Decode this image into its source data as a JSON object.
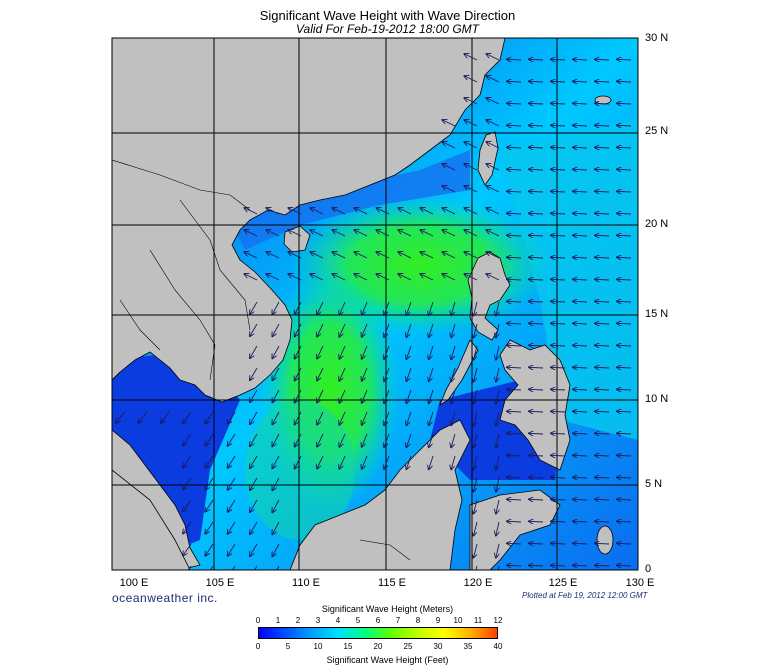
{
  "header": {
    "title": "Significant Wave Height with Wave Direction",
    "subtitle": "Valid For Feb-19-2012 18:00 GMT"
  },
  "map": {
    "lat_labels": [
      "30 N",
      "25 N",
      "20 N",
      "15 N",
      "10 N",
      "5 N",
      "0"
    ],
    "lon_labels": [
      "100 E",
      "105 E",
      "110 E",
      "115 E",
      "120 E",
      "125 E",
      "130 E"
    ],
    "colors": {
      "land": "#c0c0c0",
      "coast": "#000000",
      "grid": "#000000",
      "arrow": "#1b1b5e"
    }
  },
  "footer": {
    "brand": "oceanweather inc.",
    "plotted": "Plotted at Feb 19, 2012 12:00 GMT"
  },
  "colorbar": {
    "title_meters": "Significant Wave Height (Meters)",
    "title_feet": "Significant Wave Height (Feet)",
    "meters_ticks": [
      "0",
      "1",
      "2",
      "3",
      "4",
      "5",
      "6",
      "7",
      "8",
      "9",
      "10",
      "11",
      "12"
    ],
    "feet_ticks": [
      "0",
      "5",
      "10",
      "15",
      "20",
      "25",
      "30",
      "35",
      "40"
    ],
    "colors": [
      "#0000ff",
      "#0050ff",
      "#00a0ff",
      "#00e0ff",
      "#00ff80",
      "#60ff00",
      "#c0ff00",
      "#ffff00",
      "#ffb000",
      "#ff4000"
    ]
  }
}
